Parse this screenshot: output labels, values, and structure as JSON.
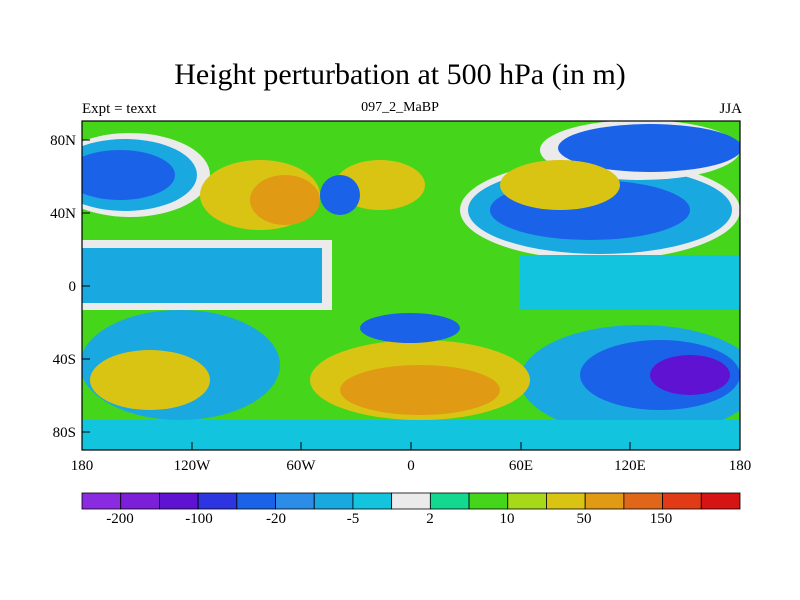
{
  "title": "Height perturbation at 500 hPa (in m)",
  "subtitle_left": "Expt = texxt",
  "subtitle_center": "097_2_MaBP",
  "subtitle_right": "JJA",
  "y_ticks": [
    "80N",
    "40N",
    "0",
    "40S",
    "80S"
  ],
  "x_ticks": [
    "180",
    "120W",
    "60W",
    "0",
    "60E",
    "120E",
    "180"
  ],
  "colorbar": {
    "colors": [
      "#8a2be2",
      "#7b1fd9",
      "#5f12d1",
      "#2c35e0",
      "#1a63e8",
      "#2b8de8",
      "#1aa8e0",
      "#12c4de",
      "#ebebeb",
      "#12d98f",
      "#45d61c",
      "#a6d91a",
      "#d9c414",
      "#e09a14",
      "#e0671a",
      "#e03a16",
      "#d61414"
    ],
    "labels": [
      "-200",
      "-100",
      "-20",
      "-5",
      "2",
      "10",
      "50",
      "150"
    ]
  }
}
